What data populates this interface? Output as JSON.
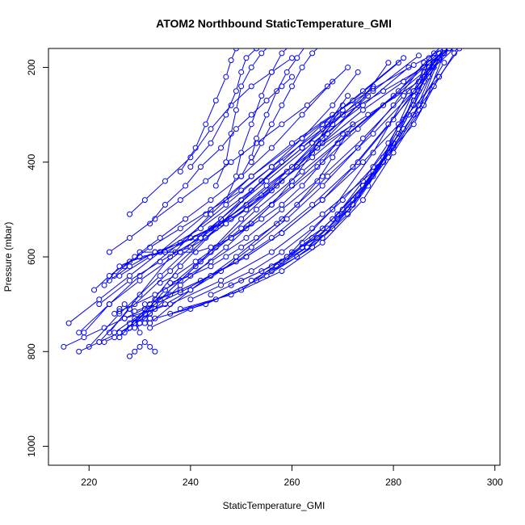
{
  "chart_data": {
    "type": "line",
    "title": "ATOM2 Northbound StaticTemperature_GMI",
    "xlabel": "StaticTemperature_GMI",
    "ylabel": "Pressure (mbar)",
    "xlim": [
      212,
      301
    ],
    "ylim": [
      1040,
      160
    ],
    "y_reversed": true,
    "x_ticks": [
      220,
      240,
      260,
      280,
      300
    ],
    "y_ticks": [
      200,
      400,
      600,
      800,
      1000
    ],
    "grid": false,
    "legend": "none",
    "marker": "open-circle",
    "color": "#0000ff",
    "series": [
      {
        "x": [
          226,
          232,
          238,
          246,
          254,
          262,
          270,
          278,
          286,
          291
        ],
        "y": [
          770,
          700,
          620,
          530,
          440,
          370,
          300,
          250,
          200,
          160
        ]
      },
      {
        "x": [
          224,
          230,
          236,
          244,
          252,
          260,
          268,
          276,
          284,
          290
        ],
        "y": [
          760,
          680,
          600,
          510,
          430,
          360,
          300,
          245,
          195,
          160
        ]
      },
      {
        "x": [
          228,
          234,
          242,
          250,
          258,
          266,
          274,
          282,
          289
        ],
        "y": [
          750,
          690,
          610,
          520,
          440,
          360,
          290,
          230,
          170
        ]
      },
      {
        "x": [
          222,
          228,
          236,
          245,
          255,
          265,
          275,
          285,
          292
        ],
        "y": [
          780,
          710,
          630,
          540,
          450,
          370,
          300,
          230,
          160
        ]
      },
      {
        "x": [
          229,
          235,
          244,
          253,
          262,
          271,
          280,
          287
        ],
        "y": [
          740,
          670,
          590,
          500,
          420,
          340,
          260,
          190
        ]
      },
      {
        "x": [
          230,
          238,
          247,
          256,
          265,
          273,
          281,
          288
        ],
        "y": [
          740,
          660,
          580,
          490,
          410,
          330,
          250,
          170
        ]
      },
      {
        "x": [
          225,
          233,
          241,
          250,
          260,
          269,
          278,
          286,
          291
        ],
        "y": [
          760,
          700,
          620,
          540,
          450,
          360,
          280,
          210,
          160
        ]
      },
      {
        "x": [
          232,
          240,
          249,
          258,
          267,
          276,
          284,
          290
        ],
        "y": [
          740,
          670,
          600,
          520,
          430,
          340,
          250,
          170
        ]
      },
      {
        "x": [
          227,
          236,
          246,
          256,
          266,
          276,
          284,
          289
        ],
        "y": [
          730,
          700,
          650,
          590,
          510,
          420,
          320,
          220
        ]
      },
      {
        "x": [
          233,
          243,
          253,
          263,
          271,
          278,
          284,
          288
        ],
        "y": [
          730,
          700,
          650,
          580,
          500,
          400,
          300,
          200
        ]
      },
      {
        "x": [
          236,
          245,
          255,
          264,
          272,
          279,
          285,
          289
        ],
        "y": [
          720,
          690,
          640,
          580,
          490,
          390,
          290,
          180
        ]
      },
      {
        "x": [
          238,
          248,
          258,
          266,
          274,
          280,
          286,
          290
        ],
        "y": [
          710,
          680,
          630,
          570,
          480,
          380,
          280,
          170
        ]
      },
      {
        "x": [
          232,
          240,
          250,
          259,
          268,
          276,
          283
        ],
        "y": [
          750,
          710,
          670,
          600,
          500,
          380,
          250
        ]
      },
      {
        "x": [
          220,
          226,
          234,
          242,
          250,
          258,
          266,
          274,
          282
        ],
        "y": [
          790,
          720,
          640,
          560,
          480,
          400,
          320,
          250,
          180
        ]
      },
      {
        "x": [
          218,
          224,
          230,
          238,
          247,
          256,
          266,
          276,
          285
        ],
        "y": [
          760,
          700,
          640,
          570,
          490,
          410,
          330,
          250,
          175
        ]
      },
      {
        "x": [
          216,
          222,
          228,
          234,
          243,
          252,
          262,
          272,
          281
        ],
        "y": [
          740,
          690,
          640,
          590,
          510,
          430,
          350,
          270,
          190
        ]
      },
      {
        "x": [
          219,
          224,
          230,
          238,
          246,
          255,
          264,
          274,
          283
        ],
        "y": [
          760,
          700,
          650,
          590,
          520,
          440,
          360,
          280,
          200
        ]
      },
      {
        "x": [
          223,
          226,
          230,
          235,
          244,
          254,
          264,
          272
        ],
        "y": [
          660,
          620,
          600,
          590,
          540,
          470,
          390,
          320
        ]
      },
      {
        "x": [
          221,
          224,
          228,
          234,
          242,
          252,
          262,
          270
        ],
        "y": [
          670,
          640,
          610,
          590,
          540,
          460,
          370,
          290
        ]
      },
      {
        "x": [
          224,
          228,
          233,
          241,
          251,
          259,
          267,
          275
        ],
        "y": [
          650,
          620,
          590,
          560,
          500,
          420,
          340,
          260
        ]
      },
      {
        "x": [
          226,
          232,
          240,
          248,
          257,
          265,
          273,
          279
        ],
        "y": [
          640,
          600,
          560,
          520,
          450,
          370,
          280,
          190
        ]
      },
      {
        "x": [
          222,
          228,
          234,
          242,
          251,
          260,
          268,
          276
        ],
        "y": [
          700,
          650,
          610,
          560,
          490,
          410,
          320,
          240
        ]
      },
      {
        "x": [
          234,
          237,
          241,
          245,
          248,
          251,
          254,
          258,
          262,
          266,
          270
        ],
        "y": [
          655,
          640,
          610,
          580,
          560,
          540,
          520,
          490,
          450,
          400,
          340
        ]
      },
      {
        "x": [
          236,
          240,
          244,
          247,
          250,
          253,
          257,
          261,
          265,
          268,
          272
        ],
        "y": [
          655,
          640,
          620,
          600,
          580,
          560,
          530,
          490,
          440,
          390,
          320
        ]
      },
      {
        "x": [
          235,
          238,
          241,
          244,
          248,
          252,
          256,
          260,
          264,
          267,
          271
        ],
        "y": [
          590,
          590,
          590,
          580,
          560,
          530,
          490,
          440,
          380,
          320,
          260
        ]
      },
      {
        "x": [
          230,
          233,
          237,
          240,
          243,
          247,
          251,
          256,
          261,
          266,
          270
        ],
        "y": [
          590,
          590,
          590,
          580,
          560,
          530,
          500,
          460,
          410,
          350,
          280
        ]
      },
      {
        "x": [
          225,
          229,
          234,
          239,
          244,
          250,
          256,
          262,
          268
        ],
        "y": [
          640,
          600,
          560,
          520,
          480,
          430,
          370,
          300,
          230
        ]
      },
      {
        "x": [
          227,
          232,
          238,
          244,
          250,
          256,
          262,
          268,
          273
        ],
        "y": [
          620,
          580,
          540,
          500,
          460,
          410,
          350,
          280,
          210
        ]
      },
      {
        "x": [
          228,
          231,
          235,
          240,
          244,
          248,
          252,
          256,
          260
        ],
        "y": [
          510,
          480,
          440,
          390,
          330,
          280,
          240,
          210,
          180
        ]
      },
      {
        "x": [
          224,
          228,
          233,
          238,
          243,
          248,
          253,
          258,
          263,
          267,
          271
        ],
        "y": [
          590,
          560,
          520,
          480,
          440,
          400,
          360,
          320,
          280,
          240,
          200
        ]
      },
      {
        "x": [
          232,
          235,
          239,
          242,
          246,
          249,
          252,
          255,
          258,
          260
        ],
        "y": [
          530,
          490,
          450,
          410,
          370,
          330,
          300,
          270,
          240,
          220
        ]
      },
      {
        "x": [
          238,
          241,
          243,
          245,
          247,
          248,
          249,
          250,
          251
        ],
        "y": [
          420,
          370,
          320,
          270,
          220,
          185,
          160,
          150,
          140
        ]
      },
      {
        "x": [
          240,
          244,
          247,
          249,
          250,
          251,
          253,
          255,
          256
        ],
        "y": [
          410,
          360,
          300,
          250,
          210,
          180,
          160,
          150,
          140
        ]
      },
      {
        "x": [
          245,
          247,
          248,
          249,
          250,
          252,
          254,
          256,
          257
        ],
        "y": [
          450,
          400,
          340,
          290,
          240,
          200,
          170,
          150,
          140
        ]
      },
      {
        "x": [
          247,
          249,
          250,
          252,
          254,
          256,
          258,
          260,
          262
        ],
        "y": [
          480,
          430,
          380,
          320,
          260,
          210,
          170,
          150,
          140
        ]
      },
      {
        "x": [
          250,
          252,
          253,
          255,
          257,
          259,
          261,
          263,
          265
        ],
        "y": [
          430,
          390,
          350,
          300,
          250,
          210,
          180,
          150,
          140
        ]
      },
      {
        "x": [
          252,
          254,
          256,
          258,
          260,
          262,
          264,
          266,
          268
        ],
        "y": [
          400,
          360,
          320,
          280,
          240,
          200,
          170,
          150,
          140
        ]
      },
      {
        "x": [
          226,
          229,
          233,
          238,
          244,
          251,
          258,
          266,
          274,
          282,
          289
        ],
        "y": [
          715,
          700,
          680,
          650,
          610,
          560,
          500,
          430,
          350,
          260,
          180
        ]
      },
      {
        "x": [
          229,
          233,
          238,
          244,
          251,
          258,
          266,
          274,
          282,
          289,
          293
        ],
        "y": [
          715,
          700,
          675,
          640,
          600,
          550,
          480,
          400,
          310,
          220,
          160
        ]
      },
      {
        "x": [
          231,
          236,
          242,
          249,
          256,
          264,
          272,
          279,
          286,
          291
        ],
        "y": [
          700,
          680,
          650,
          610,
          560,
          490,
          410,
          320,
          230,
          160
        ]
      },
      {
        "x": [
          233,
          238,
          244,
          251,
          258,
          266,
          273,
          280,
          286,
          290
        ],
        "y": [
          690,
          670,
          640,
          600,
          550,
          480,
          400,
          310,
          220,
          160
        ]
      },
      {
        "x": [
          228,
          231,
          235,
          240,
          246,
          252,
          259,
          266,
          273,
          280,
          286
        ],
        "y": [
          740,
          720,
          700,
          670,
          630,
          580,
          520,
          450,
          370,
          280,
          190
        ]
      },
      {
        "x": [
          223,
          225,
          227,
          229,
          231,
          232
        ],
        "y": [
          780,
          770,
          760,
          750,
          740,
          730
        ]
      },
      {
        "x": [
          226,
          228,
          229,
          231,
          232,
          233
        ],
        "y": [
          760,
          750,
          740,
          730,
          720,
          710
        ]
      },
      {
        "x": [
          215,
          219,
          223,
          227,
          231
        ],
        "y": [
          790,
          770,
          750,
          730,
          710
        ]
      },
      {
        "x": [
          218,
          222,
          226,
          229,
          232
        ],
        "y": [
          800,
          780,
          760,
          740,
          720
        ]
      },
      {
        "x": [
          228,
          229,
          230,
          231,
          232,
          233
        ],
        "y": [
          810,
          800,
          790,
          780,
          790,
          800
        ]
      },
      {
        "x": [
          225,
          226,
          227,
          228,
          229,
          230
        ],
        "y": [
          720,
          710,
          700,
          710,
          730,
          760
        ]
      },
      {
        "x": [
          240,
          246,
          252,
          258,
          264,
          270,
          276,
          282,
          288,
          292
        ],
        "y": [
          690,
          660,
          630,
          590,
          540,
          480,
          410,
          330,
          240,
          170
        ]
      },
      {
        "x": [
          244,
          250,
          256,
          262,
          268,
          274,
          280,
          285,
          290
        ],
        "y": [
          680,
          650,
          620,
          580,
          520,
          450,
          370,
          280,
          190
        ]
      },
      {
        "x": [
          248,
          254,
          259,
          264,
          269,
          274,
          279,
          284,
          288
        ],
        "y": [
          660,
          630,
          600,
          560,
          510,
          440,
          360,
          270,
          180
        ]
      },
      {
        "x": [
          252,
          257,
          262,
          267,
          272,
          277,
          281,
          285,
          289
        ],
        "y": [
          650,
          620,
          580,
          540,
          480,
          410,
          330,
          250,
          170
        ]
      },
      {
        "x": [
          256,
          261,
          266,
          271,
          275,
          279,
          283,
          287,
          290
        ],
        "y": [
          630,
          600,
          560,
          510,
          450,
          380,
          300,
          220,
          160
        ]
      },
      {
        "x": [
          258,
          263,
          268,
          272,
          276,
          280,
          284,
          287,
          290
        ],
        "y": [
          610,
          580,
          540,
          490,
          430,
          360,
          280,
          200,
          160
        ]
      },
      {
        "x": [
          260,
          265,
          269,
          273,
          277,
          281,
          284,
          287,
          291
        ],
        "y": [
          590,
          560,
          520,
          470,
          410,
          340,
          260,
          190,
          160
        ]
      },
      {
        "x": [
          262,
          266,
          270,
          274,
          278,
          281,
          284,
          287,
          290
        ],
        "y": [
          570,
          540,
          500,
          450,
          390,
          320,
          250,
          180,
          150
        ]
      }
    ]
  }
}
